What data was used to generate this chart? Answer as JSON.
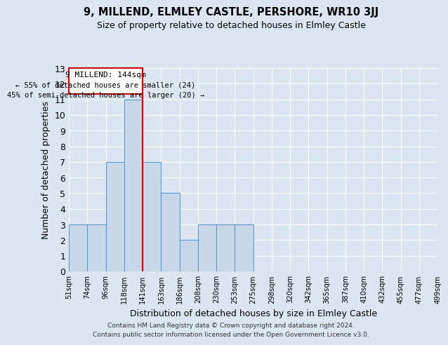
{
  "title": "9, MILLEND, ELMLEY CASTLE, PERSHORE, WR10 3JJ",
  "subtitle": "Size of property relative to detached houses in Elmley Castle",
  "xlabel": "Distribution of detached houses by size in Elmley Castle",
  "ylabel": "Number of detached properties",
  "bin_labels": [
    "51sqm",
    "74sqm",
    "96sqm",
    "118sqm",
    "141sqm",
    "163sqm",
    "186sqm",
    "208sqm",
    "230sqm",
    "253sqm",
    "275sqm",
    "298sqm",
    "320sqm",
    "342sqm",
    "365sqm",
    "387sqm",
    "410sqm",
    "432sqm",
    "455sqm",
    "477sqm",
    "499sqm"
  ],
  "counts": [
    3,
    3,
    7,
    11,
    7,
    5,
    2,
    3,
    3,
    3,
    0,
    0,
    0,
    0,
    0,
    0,
    0,
    0,
    0,
    0
  ],
  "bar_color": "#c8d8e8",
  "bar_edge_color": "#5b9bd5",
  "vline_after_bin": 3,
  "property_label": "9 MILLEND: 144sqm",
  "annotation_line1": "← 55% of detached houses are smaller (24)",
  "annotation_line2": "45% of semi-detached houses are larger (20) →",
  "vline_color": "#cc0000",
  "annotation_box_edge_color": "#cc0000",
  "background_color": "#dce6f1",
  "plot_bg_color": "#dce6f1",
  "ylim": [
    0,
    13
  ],
  "footer_line1": "Contains HM Land Registry data © Crown copyright and database right 2024.",
  "footer_line2": "Contains public sector information licensed under the Open Government Licence v3.0."
}
